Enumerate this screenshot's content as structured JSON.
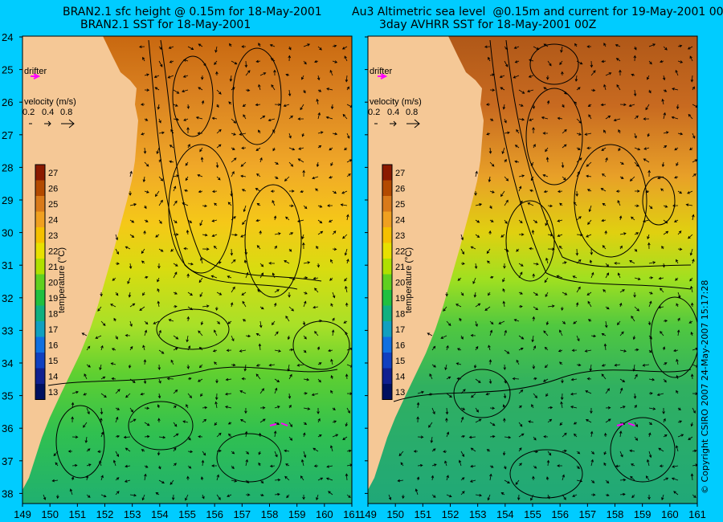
{
  "panels": [
    {
      "id": "bran",
      "title_line1": "BRAN2.1 sfc height @ 0.15m for 18-May-2001",
      "title_line2": "BRAN2.1 SST for 18-May-2001",
      "drifter_label": "drifter",
      "velocity_label": "velocity (m/s)",
      "velocity_values": [
        "0.2",
        "0.4",
        "0.8"
      ]
    },
    {
      "id": "obs",
      "title_line1": "Au3 Altimetric sea level  @0.15m and current for 19-May-2001 00Z",
      "title_line2": "3day AVHRR SST for 18-May-2001 00Z",
      "drifter_label": "drifter",
      "velocity_label": "velocity (m/s)",
      "velocity_values": [
        "0.2",
        "0.4",
        "0.8"
      ]
    }
  ],
  "colorbar": {
    "label": "temperature (°C)",
    "ticks": [
      "27",
      "26",
      "25",
      "24",
      "23",
      "22",
      "21",
      "20",
      "19",
      "18",
      "17",
      "16",
      "15",
      "14",
      "13"
    ],
    "colors": [
      "#8b1a00",
      "#b34a00",
      "#d97a1a",
      "#f0a020",
      "#f5c000",
      "#e8e000",
      "#b0e000",
      "#60d020",
      "#20c040",
      "#10b080",
      "#10a0c0",
      "#1070e0",
      "#1040c0",
      "#102090",
      "#001060"
    ]
  },
  "lat_ticks": [
    "24",
    "25",
    "26",
    "27",
    "28",
    "29",
    "30",
    "31",
    "32",
    "33",
    "34",
    "35",
    "36",
    "37",
    "38"
  ],
  "lon_ticks": [
    "149",
    "150",
    "151",
    "152",
    "153",
    "154",
    "155",
    "156",
    "157",
    "158",
    "159",
    "160",
    "161"
  ],
  "copyright": "© Copyright CSIRO 2007  24-May-2007 15:17:28",
  "colors": {
    "background": "#00ccff",
    "land": "#f5c896",
    "drifter": "#ff00ff"
  }
}
